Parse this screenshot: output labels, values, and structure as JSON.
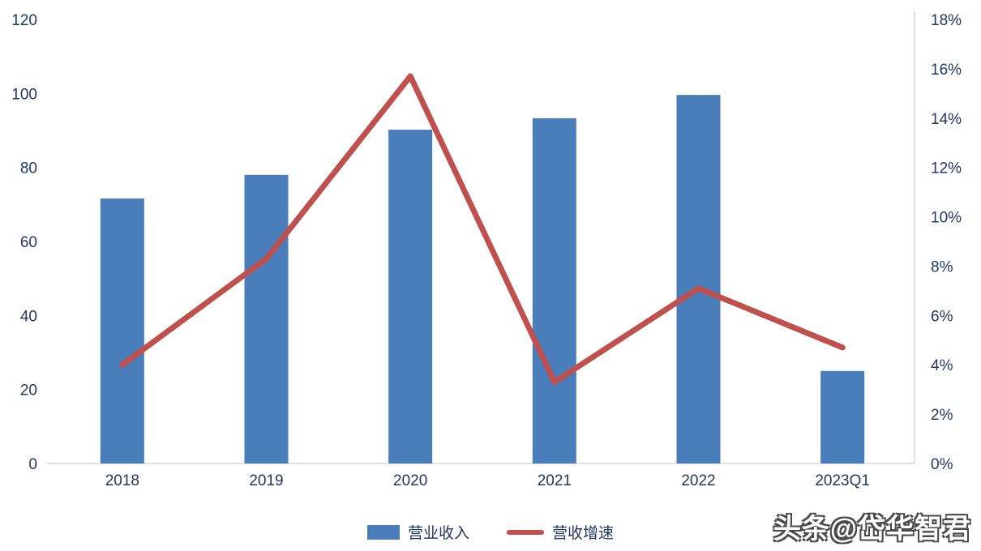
{
  "chart_data": {
    "type": "bar",
    "subtype": "bar+line combo, dual axis",
    "categories": [
      "2018",
      "2019",
      "2020",
      "2021",
      "2022",
      "2023Q1"
    ],
    "series": [
      {
        "name": "营业收入",
        "type": "bar",
        "axis": "left",
        "color": "#4a7ebb",
        "values": [
          71.6,
          78,
          90.2,
          93.3,
          99.6,
          25
        ]
      },
      {
        "name": "营收增速",
        "type": "line",
        "axis": "right",
        "color": "#c0504d",
        "values": [
          4.0,
          8.3,
          15.7,
          3.3,
          7.1,
          4.7
        ]
      }
    ],
    "left_axis": {
      "min": 0,
      "max": 120,
      "step": 20,
      "ticks": [
        "0",
        "20",
        "40",
        "60",
        "80",
        "100",
        "120"
      ]
    },
    "right_axis": {
      "min": 0,
      "max": 18,
      "step": 2,
      "ticks": [
        "0%",
        "2%",
        "4%",
        "6%",
        "8%",
        "10%",
        "12%",
        "14%",
        "16%",
        "18%"
      ]
    },
    "title": "",
    "xlabel": "",
    "ylabel": "",
    "grid": false,
    "legend_position": "bottom-center",
    "axis_label_color": "#1f3864",
    "axis_line_color": "#d6d6d6"
  },
  "legend": {
    "revenue_label": "营业收入",
    "growth_label": "营收增速"
  },
  "watermark": "头条@岱华智君"
}
